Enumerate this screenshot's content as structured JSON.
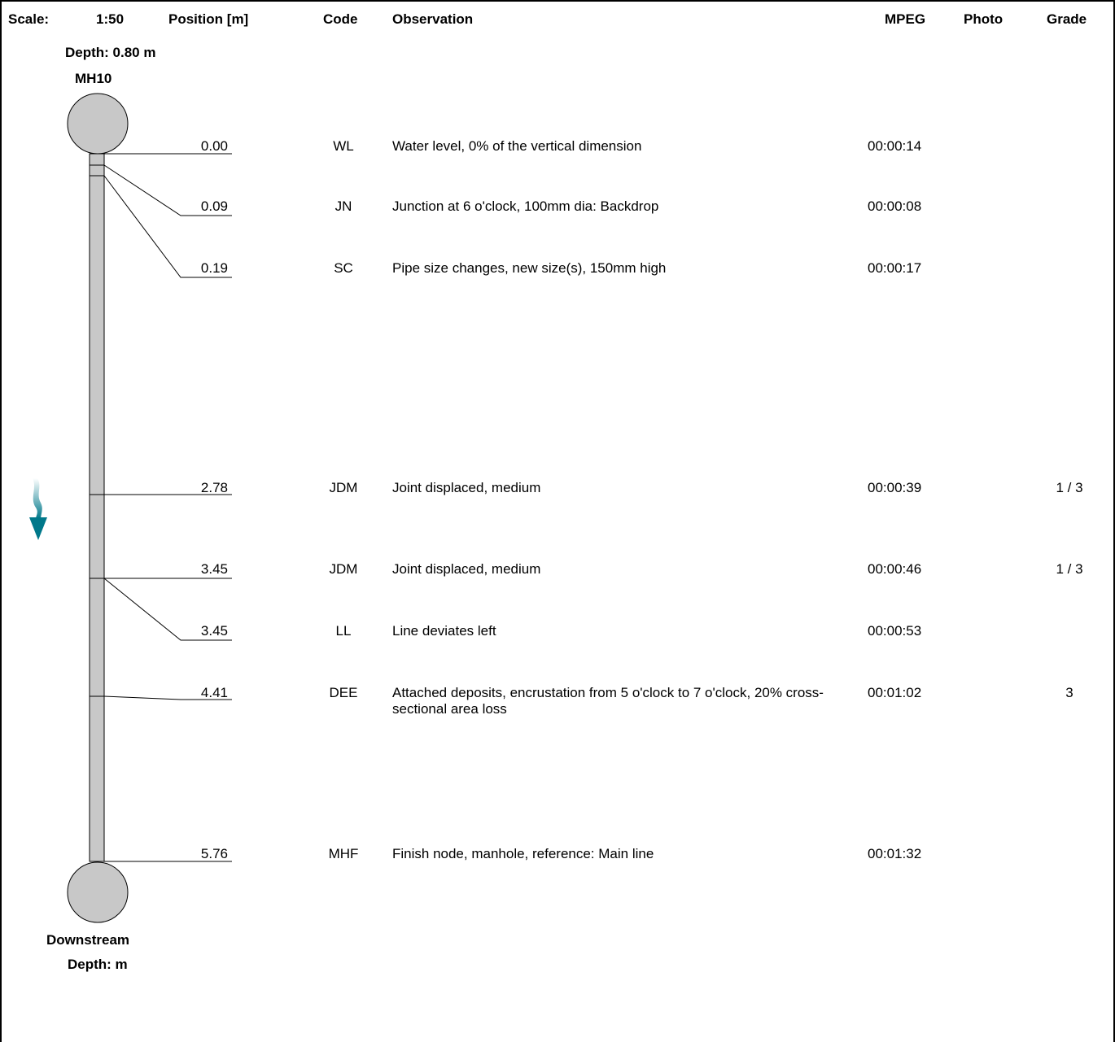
{
  "header": {
    "scale_label": "Scale:",
    "scale_value": "1:50",
    "position_label": "Position [m]",
    "code_label": "Code",
    "observation_label": "Observation",
    "mpeg_label": "MPEG",
    "photo_label": "Photo",
    "grade_label": "Grade"
  },
  "start_node": {
    "depth": "Depth: 0.80 m",
    "name": "MH10"
  },
  "end_node": {
    "name": "Downstream",
    "depth": "Depth: m"
  },
  "colors": {
    "pipe_fill": "#c8c8c8",
    "flow_arrow": "#00788a"
  },
  "flow_icon": "down-arrow-icon",
  "observations": [
    {
      "position": "0.00",
      "code": "WL",
      "text": "Water level, 0% of the vertical dimension",
      "mpeg": "00:00:14",
      "grade": ""
    },
    {
      "position": "0.09",
      "code": "JN",
      "text": "Junction at 6 o'clock, 100mm dia: Backdrop",
      "mpeg": "00:00:08",
      "grade": ""
    },
    {
      "position": "0.19",
      "code": "SC",
      "text": "Pipe size changes, new size(s), 150mm high",
      "mpeg": "00:00:17",
      "grade": ""
    },
    {
      "position": "2.78",
      "code": "JDM",
      "text": "Joint displaced, medium",
      "mpeg": "00:00:39",
      "grade": "1 / 3"
    },
    {
      "position": "3.45",
      "code": "JDM",
      "text": "Joint displaced, medium",
      "mpeg": "00:00:46",
      "grade": "1 / 3"
    },
    {
      "position": "3.45",
      "code": "LL",
      "text": "Line deviates left",
      "mpeg": "00:00:53",
      "grade": ""
    },
    {
      "position": "4.41",
      "code": "DEE",
      "text": "Attached deposits, encrustation from 5 o'clock to 7 o'clock, 20% cross-sectional area loss",
      "mpeg": "00:01:02",
      "grade": "3"
    },
    {
      "position": "5.76",
      "code": "MHF",
      "text": "Finish node, manhole, reference: Main line",
      "mpeg": "00:01:32",
      "grade": ""
    }
  ]
}
